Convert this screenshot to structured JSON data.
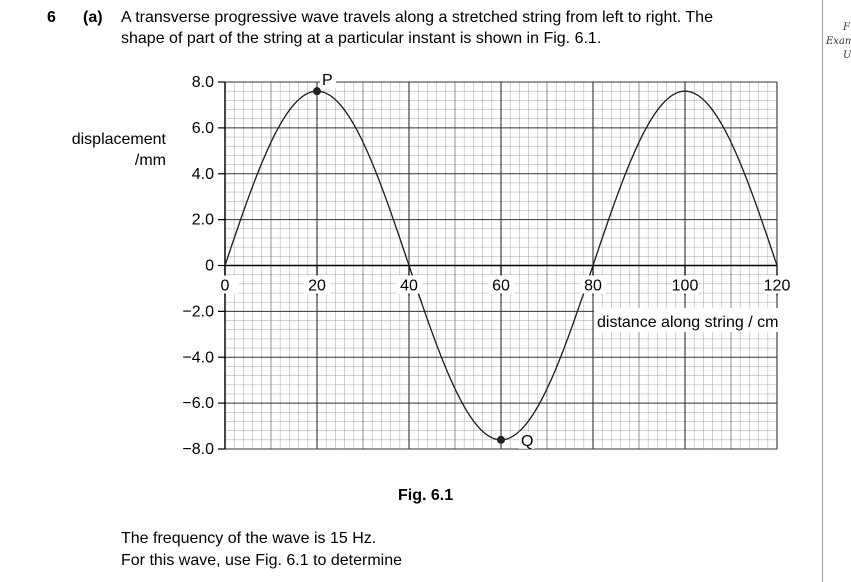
{
  "question": {
    "number": "6",
    "part": "(a)",
    "line1": "A transverse progressive wave travels along a stretched string from left to right. The",
    "line2": "shape of part of the string at a particular instant is shown in Fig. 6.1."
  },
  "figure_caption": "Fig. 6.1",
  "footer": {
    "frequency_text": "The frequency of the wave is 15 Hz.",
    "instruction_text": "For this wave, use Fig. 6.1 to determine"
  },
  "margin": {
    "f": "F",
    "exam": "Exam",
    "u": "U"
  },
  "chart_data": {
    "type": "line",
    "title": "",
    "ylabel_line1": "displacement",
    "ylabel_line2": "/mm",
    "xlabel": "distance along string / cm",
    "xlim": [
      0,
      120
    ],
    "ylim": [
      -8.0,
      8.0
    ],
    "x_ticks": [
      "0",
      "20",
      "40",
      "60",
      "80",
      "100",
      "120"
    ],
    "y_ticks": [
      "8.0",
      "6.0",
      "4.0",
      "2.0",
      "0",
      "−2.0",
      "−4.0",
      "−6.0",
      "−8.0"
    ],
    "grid": true,
    "series": [
      {
        "function": "sine",
        "amplitude": 7.6,
        "wavelength": 80,
        "x_start": 0,
        "x_end": 120
      }
    ],
    "points": [
      {
        "label": "P",
        "x": 20,
        "y": 7.6
      },
      {
        "label": "Q",
        "x": 60,
        "y": -7.6
      }
    ]
  }
}
